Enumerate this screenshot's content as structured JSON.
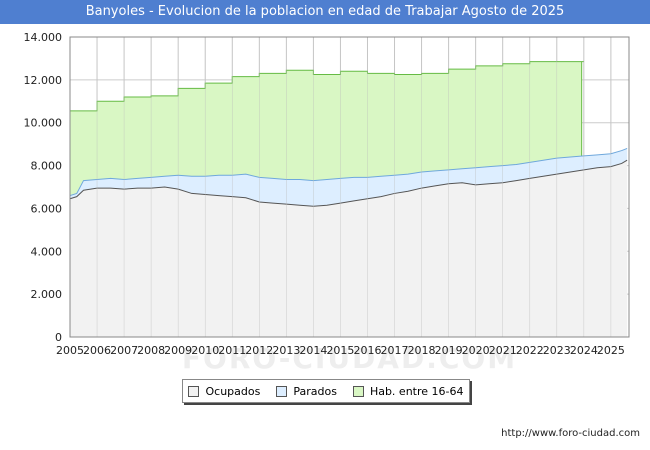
{
  "title": "Banyoles - Evolucion de la poblacion en edad de Trabajar Agosto de 2025",
  "source_url": "http://www.foro-ciudad.com",
  "watermark": "FORO-CIUDAD.COM",
  "colors": {
    "title_bg": "#4f7fd0",
    "ocupados_fill": "#f2f2f2",
    "ocupados_line": "#555555",
    "parados_fill": "#ddeeff",
    "parados_line": "#6fa8dc",
    "hab_fill": "#d9f7c4",
    "hab_line": "#66bb44",
    "grid": "#cccccc"
  },
  "legend": [
    {
      "label": "Ocupados",
      "color": "#f2f2f2"
    },
    {
      "label": "Parados",
      "color": "#ddeeff"
    },
    {
      "label": "Hab. entre 16-64",
      "color": "#d9f7c4"
    }
  ],
  "chart_data": {
    "type": "area",
    "title": "Banyoles - Evolucion de la poblacion en edad de Trabajar Agosto de 2025",
    "xlabel": "",
    "ylabel": "",
    "ylim": [
      0,
      14000
    ],
    "yticks": [
      0,
      2000,
      4000,
      6000,
      8000,
      10000,
      12000,
      14000
    ],
    "ytick_labels": [
      "0",
      "2.000",
      "4.000",
      "6.000",
      "8.000",
      "10.000",
      "12.000",
      "14.000"
    ],
    "xlim": [
      2005,
      2025.67
    ],
    "xtick_labels": [
      "2005",
      "2006",
      "2007",
      "2008",
      "2009",
      "2010",
      "2011",
      "2012",
      "2013",
      "2014",
      "2015",
      "2016",
      "2017",
      "2018",
      "2019",
      "2020",
      "2021",
      "2022",
      "2023",
      "2024",
      "2025"
    ],
    "series": [
      {
        "name": "Hab. entre 16-64",
        "step": true,
        "x": [
          2005,
          2006,
          2007,
          2008,
          2009,
          2010,
          2011,
          2012,
          2013,
          2014,
          2015,
          2016,
          2017,
          2018,
          2019,
          2020,
          2021,
          2022,
          2023,
          2024
        ],
        "values": [
          10550,
          11000,
          11200,
          11250,
          11600,
          11850,
          12150,
          12300,
          12450,
          12250,
          12400,
          12300,
          12250,
          12300,
          12500,
          12650,
          12750,
          12850,
          12850,
          12850
        ]
      },
      {
        "name": "Parados",
        "x": [
          2005,
          2005.25,
          2005.5,
          2006,
          2006.5,
          2007,
          2007.5,
          2008,
          2008.5,
          2009,
          2009.5,
          2010,
          2010.5,
          2011,
          2011.5,
          2012,
          2012.5,
          2013,
          2013.5,
          2014,
          2014.5,
          2015,
          2015.5,
          2016,
          2016.5,
          2017,
          2017.5,
          2018,
          2018.5,
          2019,
          2019.5,
          2020,
          2020.5,
          2021,
          2021.5,
          2022,
          2022.5,
          2023,
          2023.5,
          2024,
          2024.5,
          2025,
          2025.4,
          2025.6
        ],
        "values": [
          6600,
          6700,
          7300,
          7350,
          7400,
          7350,
          7400,
          7450,
          7500,
          7550,
          7500,
          7500,
          7550,
          7550,
          7600,
          7450,
          7400,
          7350,
          7350,
          7300,
          7350,
          7400,
          7450,
          7450,
          7500,
          7550,
          7600,
          7700,
          7750,
          7800,
          7850,
          7900,
          7950,
          8000,
          8050,
          8150,
          8250,
          8350,
          8400,
          8450,
          8500,
          8550,
          8700,
          8800
        ]
      },
      {
        "name": "Ocupados",
        "x": [
          2005,
          2005.25,
          2005.5,
          2006,
          2006.5,
          2007,
          2007.5,
          2008,
          2008.5,
          2009,
          2009.5,
          2010,
          2010.5,
          2011,
          2011.5,
          2012,
          2012.5,
          2013,
          2013.5,
          2014,
          2014.5,
          2015,
          2015.5,
          2016,
          2016.5,
          2017,
          2017.5,
          2018,
          2018.5,
          2019,
          2019.5,
          2020,
          2020.5,
          2021,
          2021.5,
          2022,
          2022.5,
          2023,
          2023.5,
          2024,
          2024.5,
          2025,
          2025.4,
          2025.6
        ],
        "values": [
          6450,
          6550,
          6850,
          6950,
          6950,
          6900,
          6950,
          6950,
          7000,
          6900,
          6700,
          6650,
          6600,
          6550,
          6500,
          6300,
          6250,
          6200,
          6150,
          6100,
          6150,
          6250,
          6350,
          6450,
          6550,
          6700,
          6800,
          6950,
          7050,
          7150,
          7200,
          7100,
          7150,
          7200,
          7300,
          7400,
          7500,
          7600,
          7700,
          7800,
          7900,
          7950,
          8100,
          8250
        ]
      }
    ]
  }
}
